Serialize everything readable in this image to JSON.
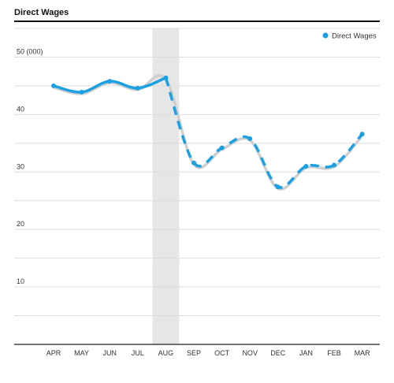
{
  "chart_data": {
    "type": "line",
    "title": "Direct Wages",
    "categories": [
      "APR",
      "MAY",
      "JUN",
      "JUL",
      "AUG",
      "SEP",
      "OCT",
      "NOV",
      "DEC",
      "JAN",
      "FEB",
      "MAR"
    ],
    "series": [
      {
        "name": "Direct Wages",
        "color": "#1ba1e2",
        "values": [
          45,
          43.9,
          45.8,
          44.6,
          46.4,
          31.6,
          34.2,
          35.8,
          27.4,
          31.0,
          31.2,
          36.6
        ],
        "actual_count": 5,
        "forecast_style": "dashed"
      }
    ],
    "y_unit_label": "50 (000)",
    "y_ticks": [
      "",
      "10",
      "20",
      "30",
      "40",
      "50 (000)"
    ],
    "ylim": [
      0,
      55
    ],
    "highlight_category": "AUG",
    "legend_position": "top-right",
    "grid": true
  }
}
